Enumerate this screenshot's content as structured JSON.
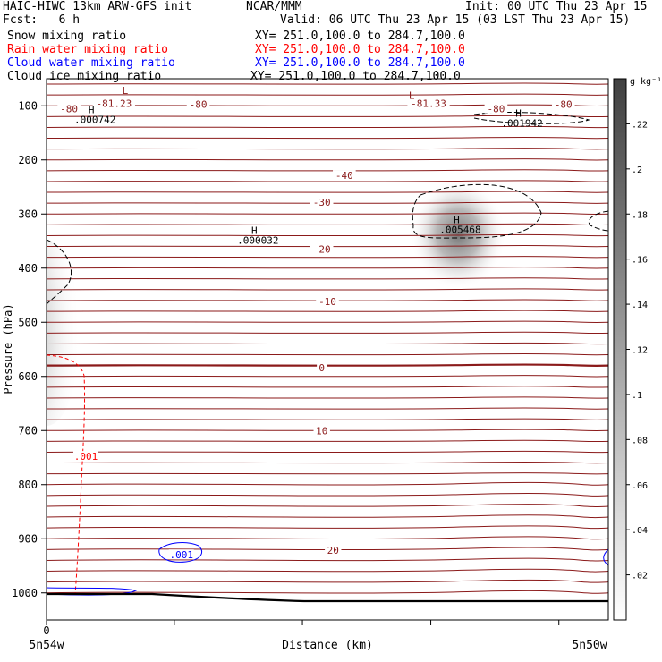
{
  "header": {
    "title": "HAIC-HIWC 13km ARW-GFS init",
    "org": "NCAR/MMM",
    "init": "Init: 00 UTC Thu 23 Apr 15",
    "fcst": "Fcst:   6 h",
    "valid": "Valid: 06 UTC Thu 23 Apr 15 (03 LST Thu 23 Apr 15)"
  },
  "fields": [
    {
      "label": "Snow mixing ratio",
      "xy": "XY= 251.0,100.0 to 284.7,100.0",
      "color": "#000000"
    },
    {
      "label": "Rain water mixing ratio",
      "xy": "XY= 251.0,100.0 to 284.7,100.0",
      "color": "#ff0000"
    },
    {
      "label": "Cloud water mixing ratio",
      "xy": "XY= 251.0,100.0 to 284.7,100.0",
      "color": "#0000ff"
    },
    {
      "label": "Cloud ice mixing ratio",
      "xy": "XY= 251.0,100.0 to 284.7,100.0",
      "color": "#000000"
    }
  ],
  "chart_data": {
    "type": "cross-section",
    "xlabel": "Distance (km)",
    "ylabel": "Pressure (hPa)",
    "x_tick_label": "0",
    "x_start_label": "5n54w",
    "x_end_label": "5n50w",
    "y_ticks": [
      100,
      200,
      300,
      400,
      500,
      600,
      700,
      800,
      900,
      1000
    ],
    "ylim": [
      50,
      1050
    ],
    "colorbar": {
      "unit": "g kg⁻¹",
      "ticks": [
        0.02,
        0.04,
        0.06,
        0.08,
        0.1,
        0.12,
        0.14,
        0.16,
        0.18,
        0.2,
        0.22
      ],
      "tick_labels": [
        ".02",
        ".04",
        ".06",
        ".08",
        ".1",
        ".12",
        ".14",
        ".16",
        ".18",
        ".2",
        ".22"
      ],
      "range": [
        0,
        0.24
      ]
    },
    "temperature_contour_labels": [
      {
        "text": "-80",
        "x": 0.04,
        "p": 109
      },
      {
        "text": "-81.23",
        "x": 0.12,
        "p": 99
      },
      {
        "text": "-80",
        "x": 0.27,
        "p": 100
      },
      {
        "text": "-81.33",
        "x": 0.68,
        "p": 99
      },
      {
        "text": "-80",
        "x": 0.8,
        "p": 109
      },
      {
        "text": "-80",
        "x": 0.92,
        "p": 100
      },
      {
        "text": "-40",
        "x": 0.53,
        "p": 232
      },
      {
        "text": "-30",
        "x": 0.49,
        "p": 281
      },
      {
        "text": "-20",
        "x": 0.49,
        "p": 368
      },
      {
        "text": "-10",
        "x": 0.5,
        "p": 465
      },
      {
        "text": "0",
        "x": 0.49,
        "p": 587
      },
      {
        "text": "10",
        "x": 0.49,
        "p": 704
      },
      {
        "text": "20",
        "x": 0.51,
        "p": 924
      }
    ],
    "extrema": [
      {
        "kind": "L",
        "x": 0.14,
        "p": 78
      },
      {
        "kind": "L",
        "x": 0.65,
        "p": 87
      },
      {
        "kind": "H",
        "value": ".000742",
        "x": 0.08,
        "p": 114
      },
      {
        "kind": "H",
        "value": ".001942",
        "x": 0.84,
        "p": 120
      },
      {
        "kind": "H",
        "value": ".005468",
        "x": 0.73,
        "p": 317
      },
      {
        "kind": "H",
        "value": ".000032",
        "x": 0.37,
        "p": 337
      }
    ],
    "field_contour_labels": [
      {
        "text": ".001",
        "field": "rain",
        "x": 0.07,
        "p": 751
      },
      {
        "text": ".001",
        "field": "cloud water",
        "x": 0.24,
        "p": 933
      }
    ]
  }
}
